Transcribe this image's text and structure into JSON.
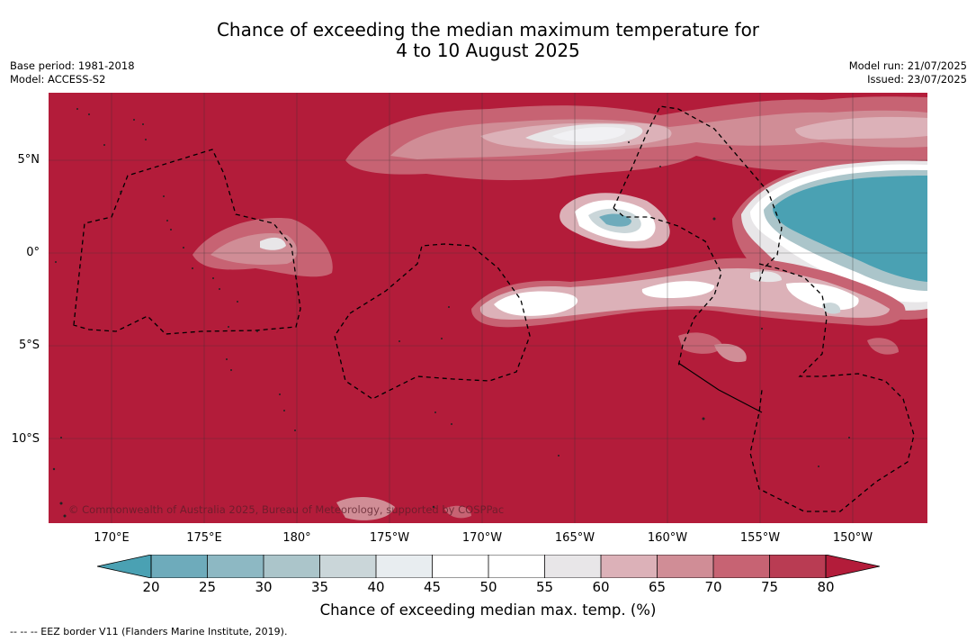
{
  "title": {
    "line1": "Chance of exceeding the median maximum temperature for",
    "line2": "4 to 10 August 2025"
  },
  "meta_left": [
    "Base period: 1981-2018",
    "Model: ACCESS-S2"
  ],
  "meta_right": [
    "Model run: 21/07/2025",
    "Issued: 23/07/2025"
  ],
  "map": {
    "lat_labels": [
      "5°N",
      "0°",
      "5°S",
      "10°S"
    ],
    "lon_labels": [
      "170°E",
      "175°E",
      "180°",
      "175°W",
      "170°W",
      "165°W",
      "160°W",
      "155°W",
      "150°W"
    ],
    "copyright": "© Commonwealth of Australia 2025, Bureau of Meteorology, supported by COSPPac",
    "background_color": "#b31c3a"
  },
  "colorbar": {
    "tick_labels": [
      "20",
      "25",
      "30",
      "35",
      "40",
      "45",
      "50",
      "55",
      "60",
      "65",
      "70",
      "75",
      "80"
    ],
    "colors": [
      "#4aa1b3",
      "#6eabbb",
      "#8db8c3",
      "#abc5ca",
      "#cad6d9",
      "#e8edf0",
      "#ffffff",
      "#ffffff",
      "#e8e6e8",
      "#dcb1b8",
      "#d08d96",
      "#c76373",
      "#b93c53",
      "#b31c3a"
    ],
    "title": "Chance of exceeding median max. temp. (%)"
  },
  "footnote": "--  --  -- EEZ border V11 (Flanders Marine Institute, 2019)."
}
